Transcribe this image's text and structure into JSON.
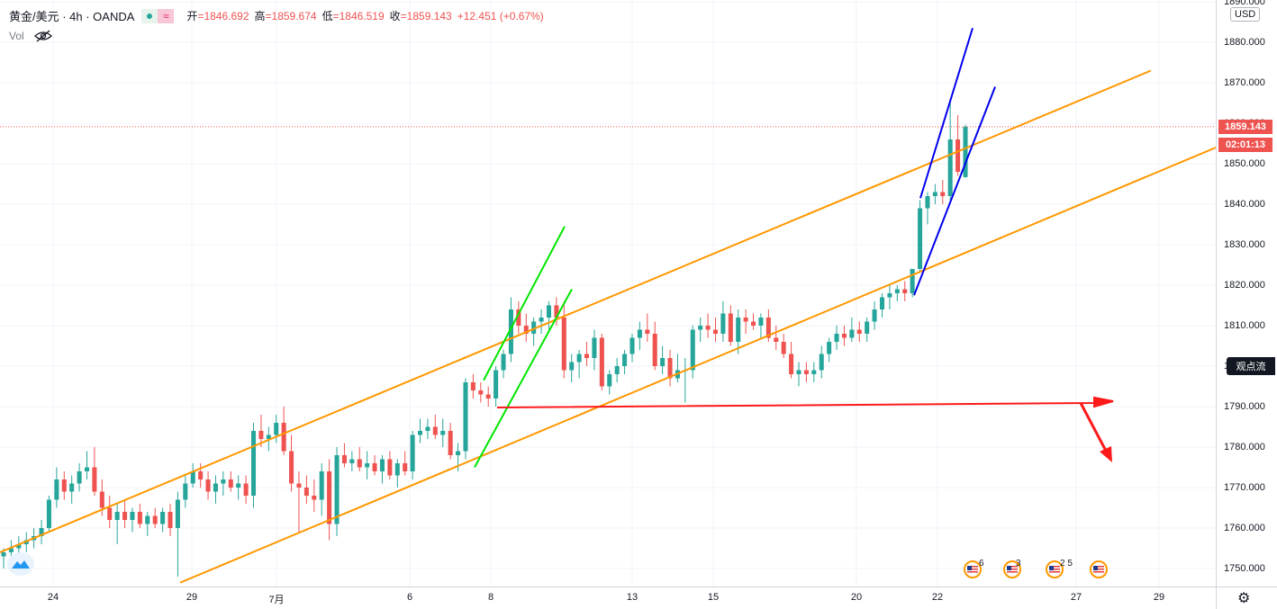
{
  "header": {
    "symbol": "黄金/美元 · 4h · OANDA",
    "wave_icon": "≈",
    "open_label": "开",
    "open_value": "=1846.692",
    "high_label": "高",
    "high_value": "=1859.674",
    "low_label": "低",
    "low_value": "=1846.519",
    "close_label": "收",
    "close_value": "=1859.143",
    "change": "+12.451 (+0.67%)",
    "vol_label": "Vol"
  },
  "price_axis": {
    "currency": "USD",
    "ticks": [
      "1890.000",
      "1880.000",
      "1870.000",
      "1860.000",
      "1850.000",
      "1840.000",
      "1830.000",
      "1820.000",
      "1810.000",
      "1800.000",
      "1790.000",
      "1780.000",
      "1770.000",
      "1760.000",
      "1750.000"
    ],
    "last_price": "1859.143",
    "countdown": "02:01:13",
    "views_button": "观点流"
  },
  "time_axis": {
    "ticks": [
      "24",
      "29",
      "7月",
      "6",
      "8",
      "13",
      "15",
      "20",
      "22",
      "27",
      "29"
    ]
  },
  "events": [
    {
      "count": "6"
    },
    {
      "count": "3"
    },
    {
      "count": "2 5"
    },
    {
      "count": ""
    }
  ],
  "colors": {
    "up": "#26a69a",
    "down": "#ef5350",
    "channel": "#ff9800",
    "green_lines": "#00e600",
    "blue_lines": "#0000ee",
    "arrow": "#ff1a1a"
  },
  "icons": [
    "eye-off-icon",
    "tradingview-logo-icon",
    "us-flag-icon",
    "gear-icon"
  ],
  "chart_data": {
    "type": "candlestick",
    "symbol": "XAU/USD",
    "interval": "4h",
    "ylim": [
      1746,
      1891
    ],
    "ohlc": [
      [
        1753,
        1755,
        1750,
        1754
      ],
      [
        1754,
        1757,
        1752,
        1755
      ],
      [
        1755,
        1758,
        1753,
        1756
      ],
      [
        1756,
        1759,
        1754,
        1757
      ],
      [
        1757,
        1760,
        1755,
        1758
      ],
      [
        1758,
        1762,
        1756,
        1760
      ],
      [
        1760,
        1768,
        1759,
        1767
      ],
      [
        1767,
        1775,
        1765,
        1772
      ],
      [
        1772,
        1774,
        1767,
        1769
      ],
      [
        1769,
        1773,
        1766,
        1771
      ],
      [
        1771,
        1776,
        1769,
        1774
      ],
      [
        1774,
        1779,
        1772,
        1775
      ],
      [
        1775,
        1780,
        1768,
        1769
      ],
      [
        1769,
        1772,
        1763,
        1765
      ],
      [
        1765,
        1768,
        1760,
        1762
      ],
      [
        1762,
        1766,
        1756,
        1764
      ],
      [
        1764,
        1767,
        1760,
        1762
      ],
      [
        1762,
        1765,
        1759,
        1764
      ],
      [
        1764,
        1766,
        1760,
        1761
      ],
      [
        1761,
        1764,
        1758,
        1763
      ],
      [
        1763,
        1765,
        1760,
        1761
      ],
      [
        1761,
        1765,
        1759,
        1764
      ],
      [
        1764,
        1766,
        1758,
        1760
      ],
      [
        1760,
        1769,
        1748,
        1767
      ],
      [
        1767,
        1773,
        1765,
        1771
      ],
      [
        1771,
        1776,
        1770,
        1774
      ],
      [
        1774,
        1776,
        1770,
        1772
      ],
      [
        1772,
        1774,
        1767,
        1769
      ],
      [
        1769,
        1773,
        1766,
        1771
      ],
      [
        1771,
        1774,
        1768,
        1772
      ],
      [
        1772,
        1774,
        1769,
        1770
      ],
      [
        1770,
        1773,
        1767,
        1771
      ],
      [
        1771,
        1773,
        1766,
        1768
      ],
      [
        1768,
        1786,
        1765,
        1784
      ],
      [
        1784,
        1788,
        1780,
        1782
      ],
      [
        1782,
        1785,
        1779,
        1783
      ],
      [
        1783,
        1788,
        1781,
        1786
      ],
      [
        1786,
        1790,
        1778,
        1779
      ],
      [
        1779,
        1783,
        1769,
        1771
      ],
      [
        1771,
        1774,
        1759,
        1770
      ],
      [
        1770,
        1773,
        1766,
        1768
      ],
      [
        1768,
        1772,
        1764,
        1767
      ],
      [
        1767,
        1776,
        1763,
        1774
      ],
      [
        1774,
        1777,
        1757,
        1761
      ],
      [
        1761,
        1780,
        1758,
        1778
      ],
      [
        1778,
        1781,
        1775,
        1776
      ],
      [
        1776,
        1779,
        1774,
        1777
      ],
      [
        1777,
        1780,
        1774,
        1775
      ],
      [
        1775,
        1779,
        1772,
        1776
      ],
      [
        1776,
        1778,
        1773,
        1774
      ],
      [
        1774,
        1778,
        1771,
        1777
      ],
      [
        1777,
        1779,
        1772,
        1773
      ],
      [
        1773,
        1777,
        1770,
        1776
      ],
      [
        1776,
        1779,
        1773,
        1774
      ],
      [
        1774,
        1784,
        1772,
        1783
      ],
      [
        1783,
        1787,
        1781,
        1784
      ],
      [
        1784,
        1787,
        1782,
        1785
      ],
      [
        1785,
        1788,
        1782,
        1783
      ],
      [
        1783,
        1787,
        1780,
        1784
      ],
      [
        1784,
        1786,
        1777,
        1778
      ],
      [
        1778,
        1781,
        1774,
        1779
      ],
      [
        1779,
        1797,
        1777,
        1796
      ],
      [
        1796,
        1798,
        1792,
        1794
      ],
      [
        1794,
        1796,
        1791,
        1793
      ],
      [
        1793,
        1795,
        1790,
        1792
      ],
      [
        1792,
        1800,
        1790,
        1799
      ],
      [
        1799,
        1804,
        1797,
        1803
      ],
      [
        1803,
        1817,
        1801,
        1814
      ],
      [
        1814,
        1816,
        1808,
        1810
      ],
      [
        1810,
        1813,
        1806,
        1808
      ],
      [
        1808,
        1812,
        1805,
        1811
      ],
      [
        1811,
        1814,
        1808,
        1812
      ],
      [
        1812,
        1816,
        1809,
        1815
      ],
      [
        1815,
        1817,
        1810,
        1812
      ],
      [
        1812,
        1816,
        1797,
        1799
      ],
      [
        1799,
        1803,
        1796,
        1801
      ],
      [
        1801,
        1804,
        1797,
        1803
      ],
      [
        1803,
        1806,
        1800,
        1802
      ],
      [
        1802,
        1809,
        1799,
        1807
      ],
      [
        1807,
        1808,
        1794,
        1795
      ],
      [
        1795,
        1799,
        1793,
        1798
      ],
      [
        1798,
        1802,
        1796,
        1800
      ],
      [
        1800,
        1804,
        1798,
        1803
      ],
      [
        1803,
        1808,
        1801,
        1807
      ],
      [
        1807,
        1811,
        1804,
        1809
      ],
      [
        1809,
        1813,
        1806,
        1808
      ],
      [
        1808,
        1811,
        1799,
        1800
      ],
      [
        1800,
        1805,
        1798,
        1802
      ],
      [
        1802,
        1804,
        1795,
        1797
      ],
      [
        1797,
        1803,
        1796,
        1799
      ],
      [
        1799,
        1802,
        1791,
        1799
      ],
      [
        1799,
        1810,
        1797,
        1809
      ],
      [
        1809,
        1812,
        1806,
        1810
      ],
      [
        1810,
        1813,
        1807,
        1809
      ],
      [
        1809,
        1812,
        1806,
        1808
      ],
      [
        1808,
        1816,
        1806,
        1813
      ],
      [
        1813,
        1815,
        1805,
        1806
      ],
      [
        1806,
        1814,
        1803,
        1812
      ],
      [
        1812,
        1814,
        1808,
        1811
      ],
      [
        1811,
        1813,
        1809,
        1810
      ],
      [
        1810,
        1813,
        1807,
        1812
      ],
      [
        1812,
        1814,
        1806,
        1807
      ],
      [
        1807,
        1810,
        1804,
        1806
      ],
      [
        1806,
        1808,
        1802,
        1803
      ],
      [
        1803,
        1806,
        1797,
        1798
      ],
      [
        1798,
        1801,
        1795,
        1799
      ],
      [
        1799,
        1801,
        1796,
        1798
      ],
      [
        1798,
        1801,
        1796,
        1799
      ],
      [
        1799,
        1805,
        1797,
        1803
      ],
      [
        1803,
        1807,
        1801,
        1806
      ],
      [
        1806,
        1810,
        1804,
        1808
      ],
      [
        1808,
        1810,
        1805,
        1807
      ],
      [
        1807,
        1812,
        1806,
        1809
      ],
      [
        1809,
        1811,
        1806,
        1808
      ],
      [
        1808,
        1812,
        1806,
        1811
      ],
      [
        1811,
        1816,
        1809,
        1814
      ],
      [
        1814,
        1818,
        1812,
        1817
      ],
      [
        1817,
        1820,
        1814,
        1818
      ],
      [
        1818,
        1820,
        1816,
        1819
      ],
      [
        1819,
        1821,
        1816,
        1818
      ],
      [
        1818,
        1824,
        1817,
        1824
      ],
      [
        1824,
        1841,
        1823,
        1839
      ],
      [
        1839,
        1843,
        1835,
        1842
      ],
      [
        1842,
        1845,
        1840,
        1843
      ],
      [
        1843,
        1846,
        1840,
        1842
      ],
      [
        1842,
        1866,
        1841,
        1856
      ],
      [
        1856,
        1862,
        1847,
        1848
      ],
      [
        1846.692,
        1859.674,
        1846.519,
        1859.143
      ]
    ]
  }
}
